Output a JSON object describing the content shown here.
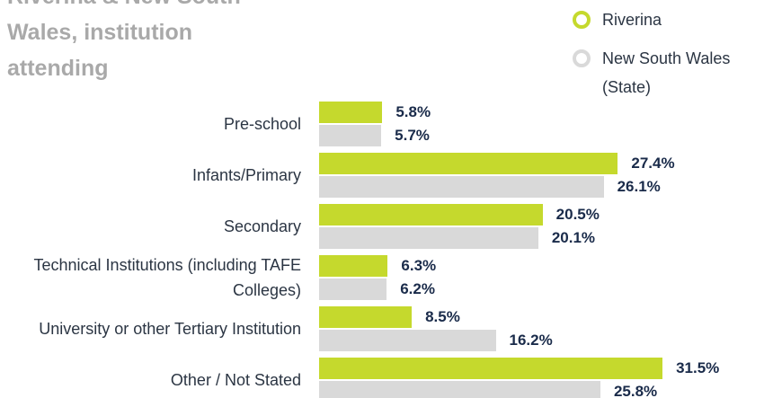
{
  "chart_data": {
    "type": "bar",
    "orientation": "horizontal",
    "title": "Riverina & New South Wales, institution attending",
    "categories": [
      "Pre-school",
      "Infants/Primary",
      "Secondary",
      "Technical Institutions (including TAFE Colleges)",
      "University or other Tertiary Institution",
      "Other / Not Stated"
    ],
    "series": [
      {
        "name": "Riverina",
        "color": "#c5d92d",
        "values": [
          5.8,
          27.4,
          20.5,
          6.3,
          8.5,
          31.5
        ],
        "value_labels": [
          "5.8%",
          "27.4%",
          "20.5%",
          "6.3%",
          "8.5%",
          "31.5%"
        ]
      },
      {
        "name": "New South Wales (State)",
        "color": "#d9d9d9",
        "values": [
          5.7,
          26.1,
          20.1,
          6.2,
          16.2,
          25.8
        ],
        "value_labels": [
          "5.7%",
          "26.1%",
          "20.1%",
          "6.2%",
          "16.2%",
          "25.8%"
        ]
      }
    ],
    "legend": "top-right"
  }
}
